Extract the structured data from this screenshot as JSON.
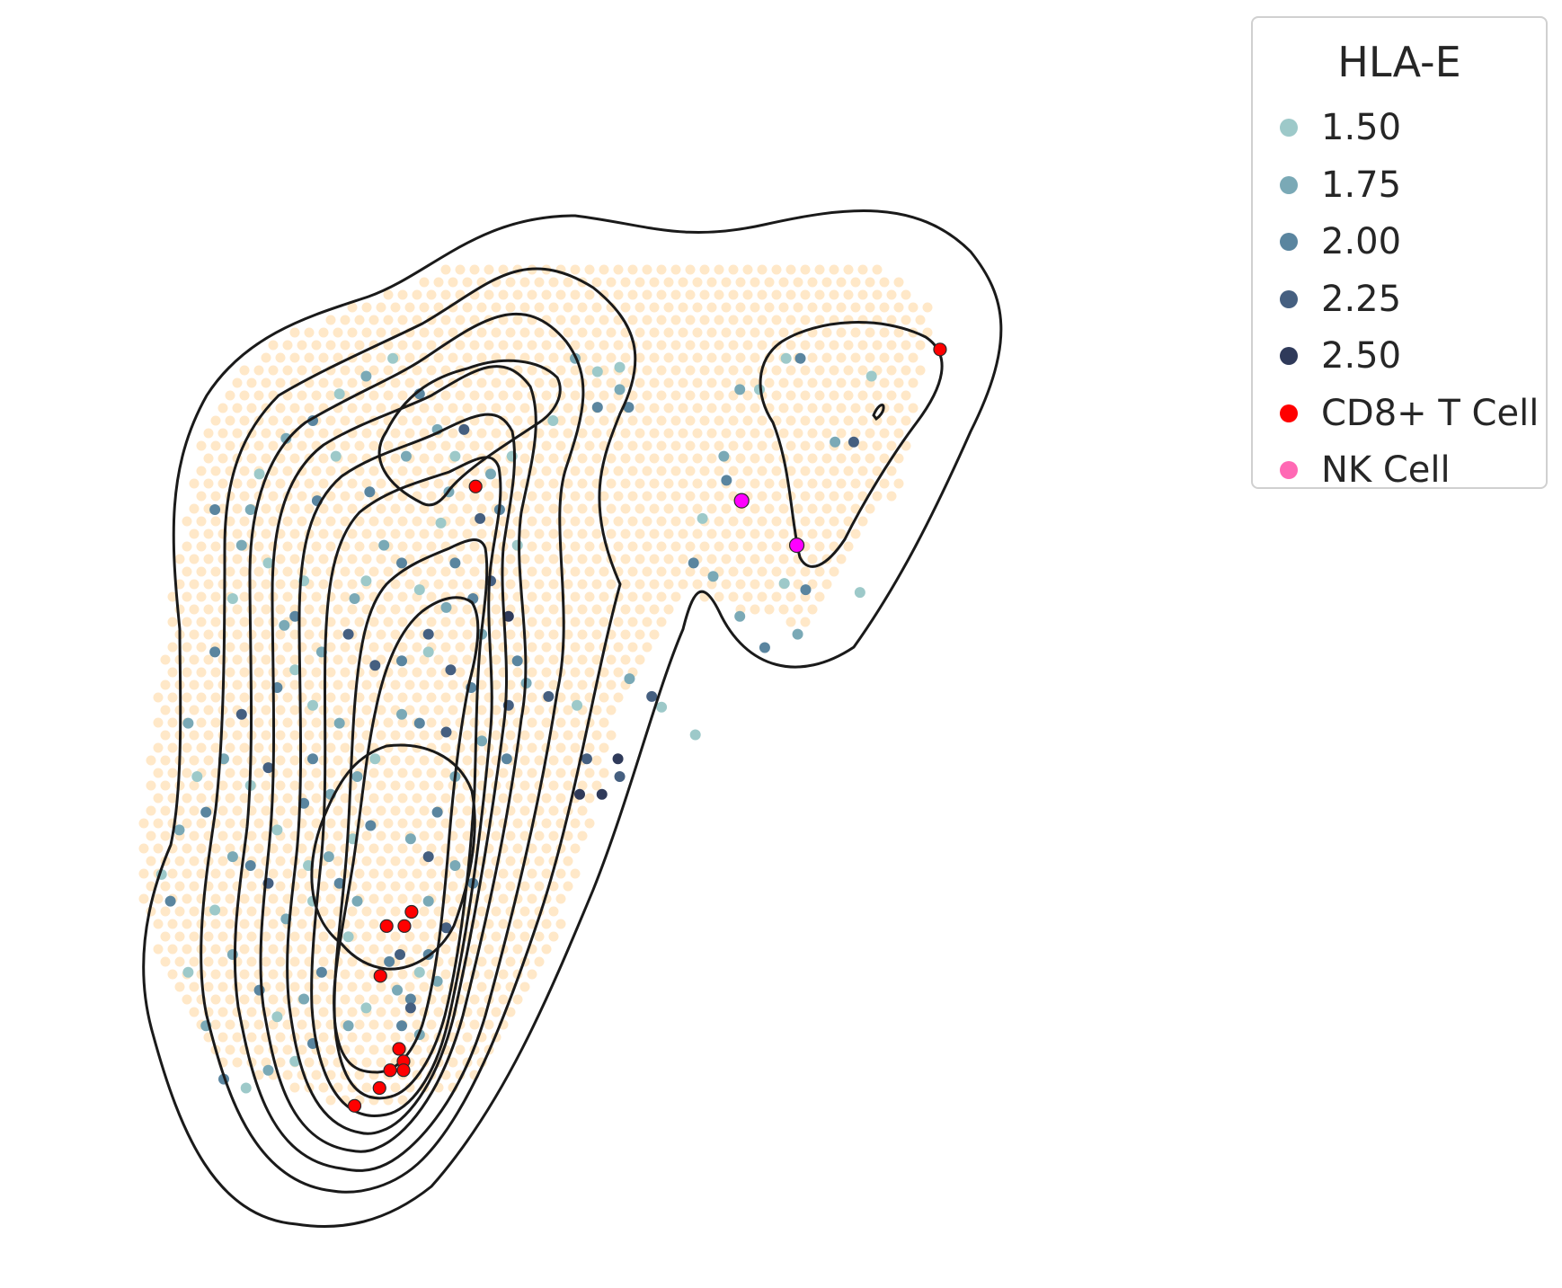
{
  "chart_data": {
    "type": "scatter",
    "title": "",
    "xlabel": "",
    "ylabel": "",
    "axes_visible": false,
    "grid": false,
    "legend": {
      "title": "HLA-E",
      "placement": "top-right",
      "hue_levels": [
        {
          "label": "1.50",
          "color": "#9dc9c9"
        },
        {
          "label": "1.75",
          "color": "#7aa9b6"
        },
        {
          "label": "2.00",
          "color": "#5a859f"
        },
        {
          "label": "2.25",
          "color": "#455f80"
        },
        {
          "label": "2.50",
          "color": "#2f3a5a"
        }
      ],
      "markers": [
        {
          "label": "CD8+ T Cell",
          "color": "#ff0000"
        },
        {
          "label": "NK Cell",
          "color": "#ff69b4"
        }
      ]
    },
    "background_spots": {
      "color": "#ffe8c8",
      "description": "tissue spots"
    },
    "cd8_t_cells": {
      "color": "#ff0000",
      "points": [
        [
          0.905,
          0.88
        ],
        [
          0.383,
          0.726
        ],
        [
          0.283,
          0.232
        ],
        [
          0.303,
          0.232
        ],
        [
          0.311,
          0.248
        ],
        [
          0.276,
          0.176
        ],
        [
          0.297,
          0.094
        ],
        [
          0.302,
          0.08
        ],
        [
          0.287,
          0.07
        ],
        [
          0.302,
          0.07
        ],
        [
          0.275,
          0.05
        ],
        [
          0.247,
          0.03
        ]
      ]
    },
    "nk_cells": {
      "color": "#ff00ff",
      "points": [
        [
          0.682,
          0.71
        ],
        [
          0.744,
          0.66
        ]
      ]
    },
    "expression_spots": [
      [
        0.495,
        0.87,
        1.75
      ],
      [
        0.545,
        0.86,
        1.5
      ],
      [
        0.732,
        0.87,
        1.5
      ],
      [
        0.748,
        0.87,
        2.0
      ],
      [
        0.68,
        0.835,
        1.75
      ],
      [
        0.702,
        0.835,
        1.5
      ],
      [
        0.828,
        0.85,
        1.5
      ],
      [
        0.808,
        0.776,
        2.25
      ],
      [
        0.787,
        0.776,
        1.75
      ],
      [
        0.662,
        0.76,
        1.75
      ],
      [
        0.665,
        0.733,
        2.0
      ],
      [
        0.638,
        0.69,
        1.5
      ],
      [
        0.628,
        0.64,
        2.0
      ],
      [
        0.65,
        0.625,
        1.75
      ],
      [
        0.708,
        0.545,
        2.0
      ],
      [
        0.68,
        0.58,
        1.75
      ],
      [
        0.745,
        0.56,
        1.75
      ],
      [
        0.754,
        0.61,
        2.0
      ],
      [
        0.815,
        0.607,
        1.5
      ],
      [
        0.73,
        0.617,
        1.5
      ],
      [
        0.556,
        0.51,
        1.75
      ],
      [
        0.581,
        0.49,
        2.25
      ],
      [
        0.63,
        0.447,
        1.5
      ],
      [
        0.592,
        0.478,
        1.5
      ],
      [
        0.52,
        0.855,
        1.5
      ],
      [
        0.545,
        0.835,
        1.75
      ],
      [
        0.52,
        0.815,
        2.0
      ],
      [
        0.555,
        0.815,
        2.0
      ],
      [
        0.47,
        0.8,
        1.5
      ],
      [
        0.424,
        0.76,
        1.5
      ],
      [
        0.388,
        0.69,
        2.25
      ],
      [
        0.353,
        0.72,
        1.75
      ],
      [
        0.344,
        0.685,
        1.5
      ],
      [
        0.305,
        0.76,
        1.75
      ],
      [
        0.264,
        0.72,
        2.0
      ],
      [
        0.226,
        0.76,
        1.5
      ],
      [
        0.205,
        0.71,
        2.0
      ],
      [
        0.247,
        0.6,
        1.75
      ],
      [
        0.19,
        0.62,
        1.5
      ],
      [
        0.168,
        0.57,
        1.75
      ],
      [
        0.18,
        0.52,
        1.5
      ],
      [
        0.16,
        0.5,
        2.0
      ],
      [
        0.2,
        0.48,
        1.5
      ],
      [
        0.23,
        0.46,
        1.75
      ],
      [
        0.27,
        0.525,
        2.25
      ],
      [
        0.3,
        0.53,
        2.0
      ],
      [
        0.33,
        0.54,
        1.5
      ],
      [
        0.355,
        0.52,
        2.25
      ],
      [
        0.378,
        0.5,
        2.0
      ],
      [
        0.42,
        0.48,
        2.25
      ],
      [
        0.44,
        0.505,
        1.75
      ],
      [
        0.465,
        0.49,
        2.25
      ],
      [
        0.497,
        0.48,
        1.5
      ],
      [
        0.508,
        0.42,
        2.25
      ],
      [
        0.543,
        0.42,
        2.5
      ],
      [
        0.545,
        0.4,
        2.25
      ],
      [
        0.525,
        0.38,
        2.5
      ],
      [
        0.5,
        0.38,
        2.5
      ],
      [
        0.418,
        0.42,
        2.0
      ],
      [
        0.39,
        0.44,
        1.75
      ],
      [
        0.35,
        0.45,
        2.25
      ],
      [
        0.32,
        0.46,
        2.0
      ],
      [
        0.3,
        0.47,
        1.75
      ],
      [
        0.27,
        0.42,
        1.5
      ],
      [
        0.25,
        0.4,
        1.75
      ],
      [
        0.2,
        0.42,
        2.0
      ],
      [
        0.15,
        0.41,
        2.25
      ],
      [
        0.13,
        0.39,
        1.5
      ],
      [
        0.11,
        0.31,
        1.75
      ],
      [
        0.13,
        0.3,
        2.0
      ],
      [
        0.195,
        0.3,
        1.5
      ],
      [
        0.218,
        0.31,
        1.75
      ],
      [
        0.245,
        0.33,
        1.5
      ],
      [
        0.265,
        0.345,
        2.0
      ],
      [
        0.31,
        0.33,
        1.75
      ],
      [
        0.33,
        0.31,
        2.25
      ],
      [
        0.36,
        0.3,
        1.75
      ],
      [
        0.38,
        0.28,
        2.0
      ],
      [
        0.298,
        0.2,
        2.25
      ],
      [
        0.286,
        0.192,
        2.0
      ],
      [
        0.295,
        0.16,
        1.75
      ],
      [
        0.31,
        0.15,
        2.0
      ],
      [
        0.3,
        0.12,
        2.0
      ],
      [
        0.32,
        0.11,
        1.75
      ],
      [
        0.26,
        0.14,
        1.5
      ],
      [
        0.24,
        0.12,
        1.75
      ],
      [
        0.2,
        0.1,
        2.0
      ],
      [
        0.18,
        0.08,
        1.5
      ],
      [
        0.15,
        0.07,
        1.75
      ],
      [
        0.125,
        0.05,
        1.5
      ],
      [
        0.1,
        0.06,
        2.0
      ],
      [
        0.08,
        0.12,
        1.75
      ],
      [
        0.06,
        0.18,
        1.5
      ],
      [
        0.04,
        0.26,
        2.0
      ],
      [
        0.05,
        0.34,
        1.75
      ],
      [
        0.03,
        0.29,
        1.5
      ],
      [
        0.07,
        0.4,
        1.5
      ],
      [
        0.06,
        0.46,
        1.75
      ],
      [
        0.09,
        0.54,
        2.0
      ],
      [
        0.11,
        0.6,
        1.5
      ],
      [
        0.12,
        0.66,
        1.75
      ],
      [
        0.09,
        0.7,
        2.0
      ],
      [
        0.14,
        0.74,
        1.5
      ],
      [
        0.17,
        0.78,
        1.75
      ],
      [
        0.2,
        0.8,
        2.0
      ],
      [
        0.23,
        0.83,
        1.5
      ],
      [
        0.26,
        0.85,
        1.75
      ],
      [
        0.29,
        0.87,
        1.5
      ],
      [
        0.32,
        0.83,
        2.0
      ],
      [
        0.34,
        0.79,
        1.75
      ],
      [
        0.37,
        0.79,
        2.25
      ],
      [
        0.36,
        0.76,
        1.5
      ],
      [
        0.4,
        0.74,
        1.75
      ],
      [
        0.41,
        0.7,
        2.0
      ],
      [
        0.43,
        0.66,
        1.5
      ],
      [
        0.4,
        0.62,
        2.25
      ],
      [
        0.38,
        0.6,
        2.0
      ],
      [
        0.35,
        0.59,
        1.75
      ],
      [
        0.32,
        0.61,
        1.5
      ],
      [
        0.3,
        0.64,
        2.0
      ],
      [
        0.28,
        0.66,
        1.75
      ],
      [
        0.26,
        0.62,
        1.5
      ],
      [
        0.24,
        0.56,
        2.25
      ],
      [
        0.21,
        0.54,
        1.75
      ],
      [
        0.18,
        0.58,
        2.0
      ],
      [
        0.15,
        0.64,
        1.5
      ],
      [
        0.13,
        0.7,
        1.75
      ],
      [
        0.12,
        0.47,
        2.25
      ],
      [
        0.1,
        0.42,
        1.75
      ],
      [
        0.08,
        0.36,
        2.0
      ],
      [
        0.09,
        0.25,
        1.5
      ],
      [
        0.11,
        0.2,
        1.75
      ],
      [
        0.14,
        0.16,
        2.0
      ],
      [
        0.16,
        0.13,
        1.5
      ],
      [
        0.19,
        0.15,
        1.75
      ],
      [
        0.21,
        0.18,
        2.0
      ],
      [
        0.24,
        0.22,
        1.5
      ],
      [
        0.25,
        0.26,
        1.75
      ],
      [
        0.23,
        0.28,
        2.0
      ],
      [
        0.2,
        0.26,
        1.5
      ],
      [
        0.17,
        0.24,
        1.75
      ],
      [
        0.15,
        0.28,
        2.25
      ],
      [
        0.16,
        0.34,
        1.5
      ],
      [
        0.19,
        0.37,
        2.0
      ],
      [
        0.22,
        0.38,
        1.75
      ],
      [
        0.33,
        0.56,
        2.25
      ],
      [
        0.36,
        0.64,
        2.0
      ],
      [
        0.39,
        0.56,
        1.75
      ],
      [
        0.42,
        0.58,
        2.5
      ],
      [
        0.43,
        0.53,
        2.0
      ],
      [
        0.36,
        0.4,
        1.75
      ],
      [
        0.34,
        0.36,
        2.0
      ],
      [
        0.33,
        0.26,
        1.75
      ],
      [
        0.35,
        0.23,
        2.25
      ],
      [
        0.33,
        0.2,
        2.0
      ],
      [
        0.34,
        0.17,
        1.75
      ],
      [
        0.31,
        0.14,
        2.25
      ],
      [
        0.32,
        0.18,
        1.5
      ]
    ]
  }
}
